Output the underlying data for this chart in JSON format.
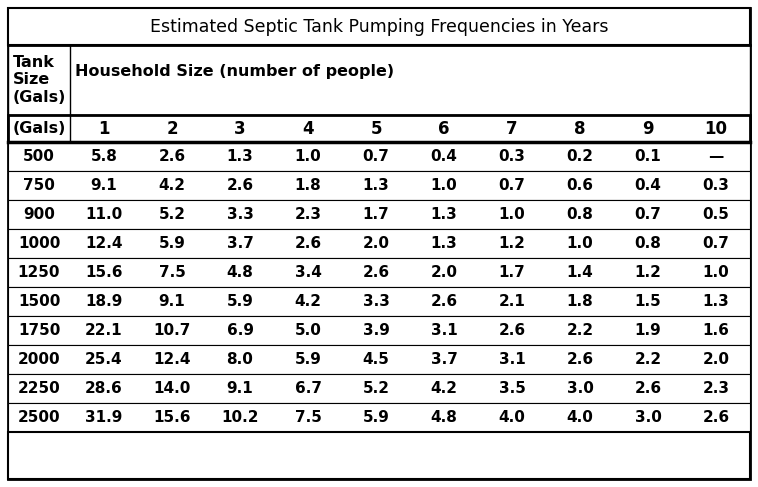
{
  "title": "Estimated Septic Tank Pumping Frequencies in Years",
  "col_header_label": "Household Size (number of people)",
  "tank_label_lines": [
    "Tank",
    "Size",
    "(Gals)"
  ],
  "col_numbers": [
    "1",
    "2",
    "3",
    "4",
    "5",
    "6",
    "7",
    "8",
    "9",
    "10"
  ],
  "tank_sizes": [
    "500",
    "750",
    "900",
    "1000",
    "1250",
    "1500",
    "1750",
    "2000",
    "2250",
    "2500"
  ],
  "table_data": [
    [
      "5.8",
      "2.6",
      "1.3",
      "1.0",
      "0.7",
      "0.4",
      "0.3",
      "0.2",
      "0.1",
      "—"
    ],
    [
      "9.1",
      "4.2",
      "2.6",
      "1.8",
      "1.3",
      "1.0",
      "0.7",
      "0.6",
      "0.4",
      "0.3"
    ],
    [
      "11.0",
      "5.2",
      "3.3",
      "2.3",
      "1.7",
      "1.3",
      "1.0",
      "0.8",
      "0.7",
      "0.5"
    ],
    [
      "12.4",
      "5.9",
      "3.7",
      "2.6",
      "2.0",
      "1.3",
      "1.2",
      "1.0",
      "0.8",
      "0.7"
    ],
    [
      "15.6",
      "7.5",
      "4.8",
      "3.4",
      "2.6",
      "2.0",
      "1.7",
      "1.4",
      "1.2",
      "1.0"
    ],
    [
      "18.9",
      "9.1",
      "5.9",
      "4.2",
      "3.3",
      "2.6",
      "2.1",
      "1.8",
      "1.5",
      "1.3"
    ],
    [
      "22.1",
      "10.7",
      "6.9",
      "5.0",
      "3.9",
      "3.1",
      "2.6",
      "2.2",
      "1.9",
      "1.6"
    ],
    [
      "25.4",
      "12.4",
      "8.0",
      "5.9",
      "4.5",
      "3.7",
      "3.1",
      "2.6",
      "2.2",
      "2.0"
    ],
    [
      "28.6",
      "14.0",
      "9.1",
      "6.7",
      "5.2",
      "4.2",
      "3.5",
      "3.0",
      "2.6",
      "2.3"
    ],
    [
      "31.9",
      "15.6",
      "10.2",
      "7.5",
      "5.9",
      "4.8",
      "4.0",
      "4.0",
      "3.0",
      "2.6"
    ]
  ],
  "bg_color": "#ffffff",
  "title_fontsize": 12.5,
  "header_fontsize": 11.5,
  "data_fontsize": 11,
  "col_num_fontsize": 12
}
